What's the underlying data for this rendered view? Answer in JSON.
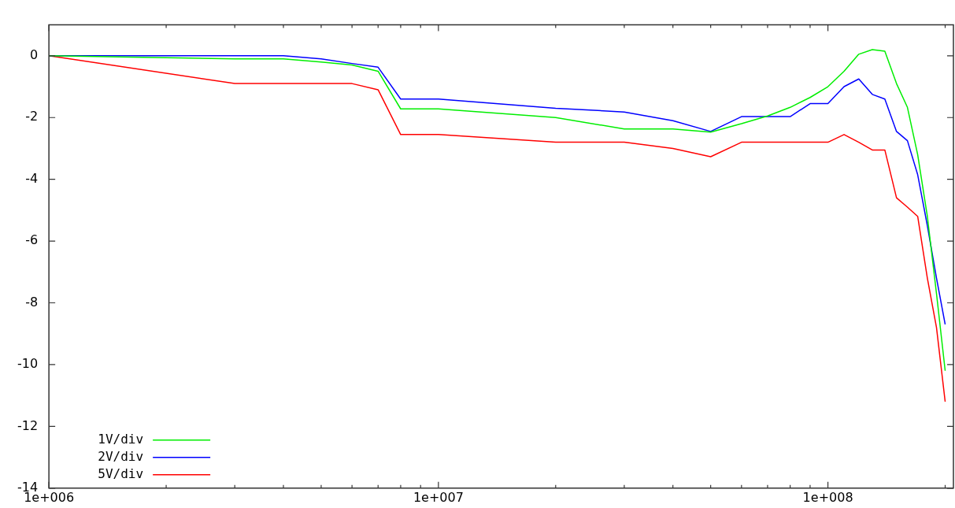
{
  "chart_data": {
    "type": "line",
    "x": [
      1000000,
      3000000,
      4000000,
      5000000,
      6000000,
      7000000,
      8000000,
      10000000,
      20000000,
      30000000,
      40000000,
      50000000,
      60000000,
      70000000,
      80000000,
      90000000,
      100000000,
      110000000,
      120000000,
      130000000,
      140000000,
      150000000,
      160000000,
      170000000,
      180000000,
      190000000,
      200000000
    ],
    "series": [
      {
        "name": "1V/div",
        "color": "#00ee00",
        "values": [
          0,
          -0.1,
          -0.1,
          -0.2,
          -0.3,
          -0.5,
          -1.72,
          -1.72,
          -2.0,
          -2.37,
          -2.37,
          -2.47,
          -2.2,
          -1.95,
          -1.67,
          -1.35,
          -1.0,
          -0.5,
          0.05,
          0.2,
          0.15,
          -0.9,
          -1.67,
          -3.2,
          -5.2,
          -7.7,
          -10.2
        ]
      },
      {
        "name": "2V/div",
        "color": "#0000ff",
        "values": [
          0,
          0,
          0,
          -0.1,
          -0.25,
          -0.37,
          -1.4,
          -1.4,
          -1.7,
          -1.82,
          -2.1,
          -2.45,
          -1.97,
          -1.97,
          -1.97,
          -1.55,
          -1.55,
          -1.0,
          -0.75,
          -1.25,
          -1.4,
          -2.45,
          -2.75,
          -3.85,
          -5.5,
          -7.2,
          -8.7
        ]
      },
      {
        "name": "5V/div",
        "color": "#ff0000",
        "values": [
          0,
          -0.9,
          -0.9,
          -0.9,
          -0.9,
          -1.1,
          -2.55,
          -2.55,
          -2.8,
          -2.8,
          -3.0,
          -3.27,
          -2.8,
          -2.8,
          -2.8,
          -2.8,
          -2.8,
          -2.55,
          -2.8,
          -3.05,
          -3.05,
          -4.6,
          -4.9,
          -5.2,
          -7.2,
          -8.8,
          -11.2
        ]
      }
    ],
    "log": "x",
    "xlim": [
      1000000,
      210000000
    ],
    "xticks": [
      {
        "value": 1000000,
        "label": "1e+006"
      },
      {
        "value": 2000000,
        "label": null
      },
      {
        "value": 3000000,
        "label": null
      },
      {
        "value": 4000000,
        "label": null
      },
      {
        "value": 5000000,
        "label": null
      },
      {
        "value": 6000000,
        "label": null
      },
      {
        "value": 7000000,
        "label": null
      },
      {
        "value": 8000000,
        "label": null
      },
      {
        "value": 9000000,
        "label": null
      },
      {
        "value": 10000000,
        "label": "1e+007"
      },
      {
        "value": 20000000,
        "label": null
      },
      {
        "value": 30000000,
        "label": null
      },
      {
        "value": 40000000,
        "label": null
      },
      {
        "value": 50000000,
        "label": null
      },
      {
        "value": 60000000,
        "label": null
      },
      {
        "value": 70000000,
        "label": null
      },
      {
        "value": 80000000,
        "label": null
      },
      {
        "value": 90000000,
        "label": null
      },
      {
        "value": 100000000,
        "label": "1e+008"
      },
      {
        "value": 200000000,
        "label": null
      }
    ],
    "ylim": [
      -14,
      1
    ],
    "yticks": [
      -14,
      -12,
      -10,
      -8,
      -6,
      -4,
      -2,
      0
    ],
    "grid": false,
    "legend": "bottom left",
    "line_style": "solid",
    "marker": "none"
  }
}
